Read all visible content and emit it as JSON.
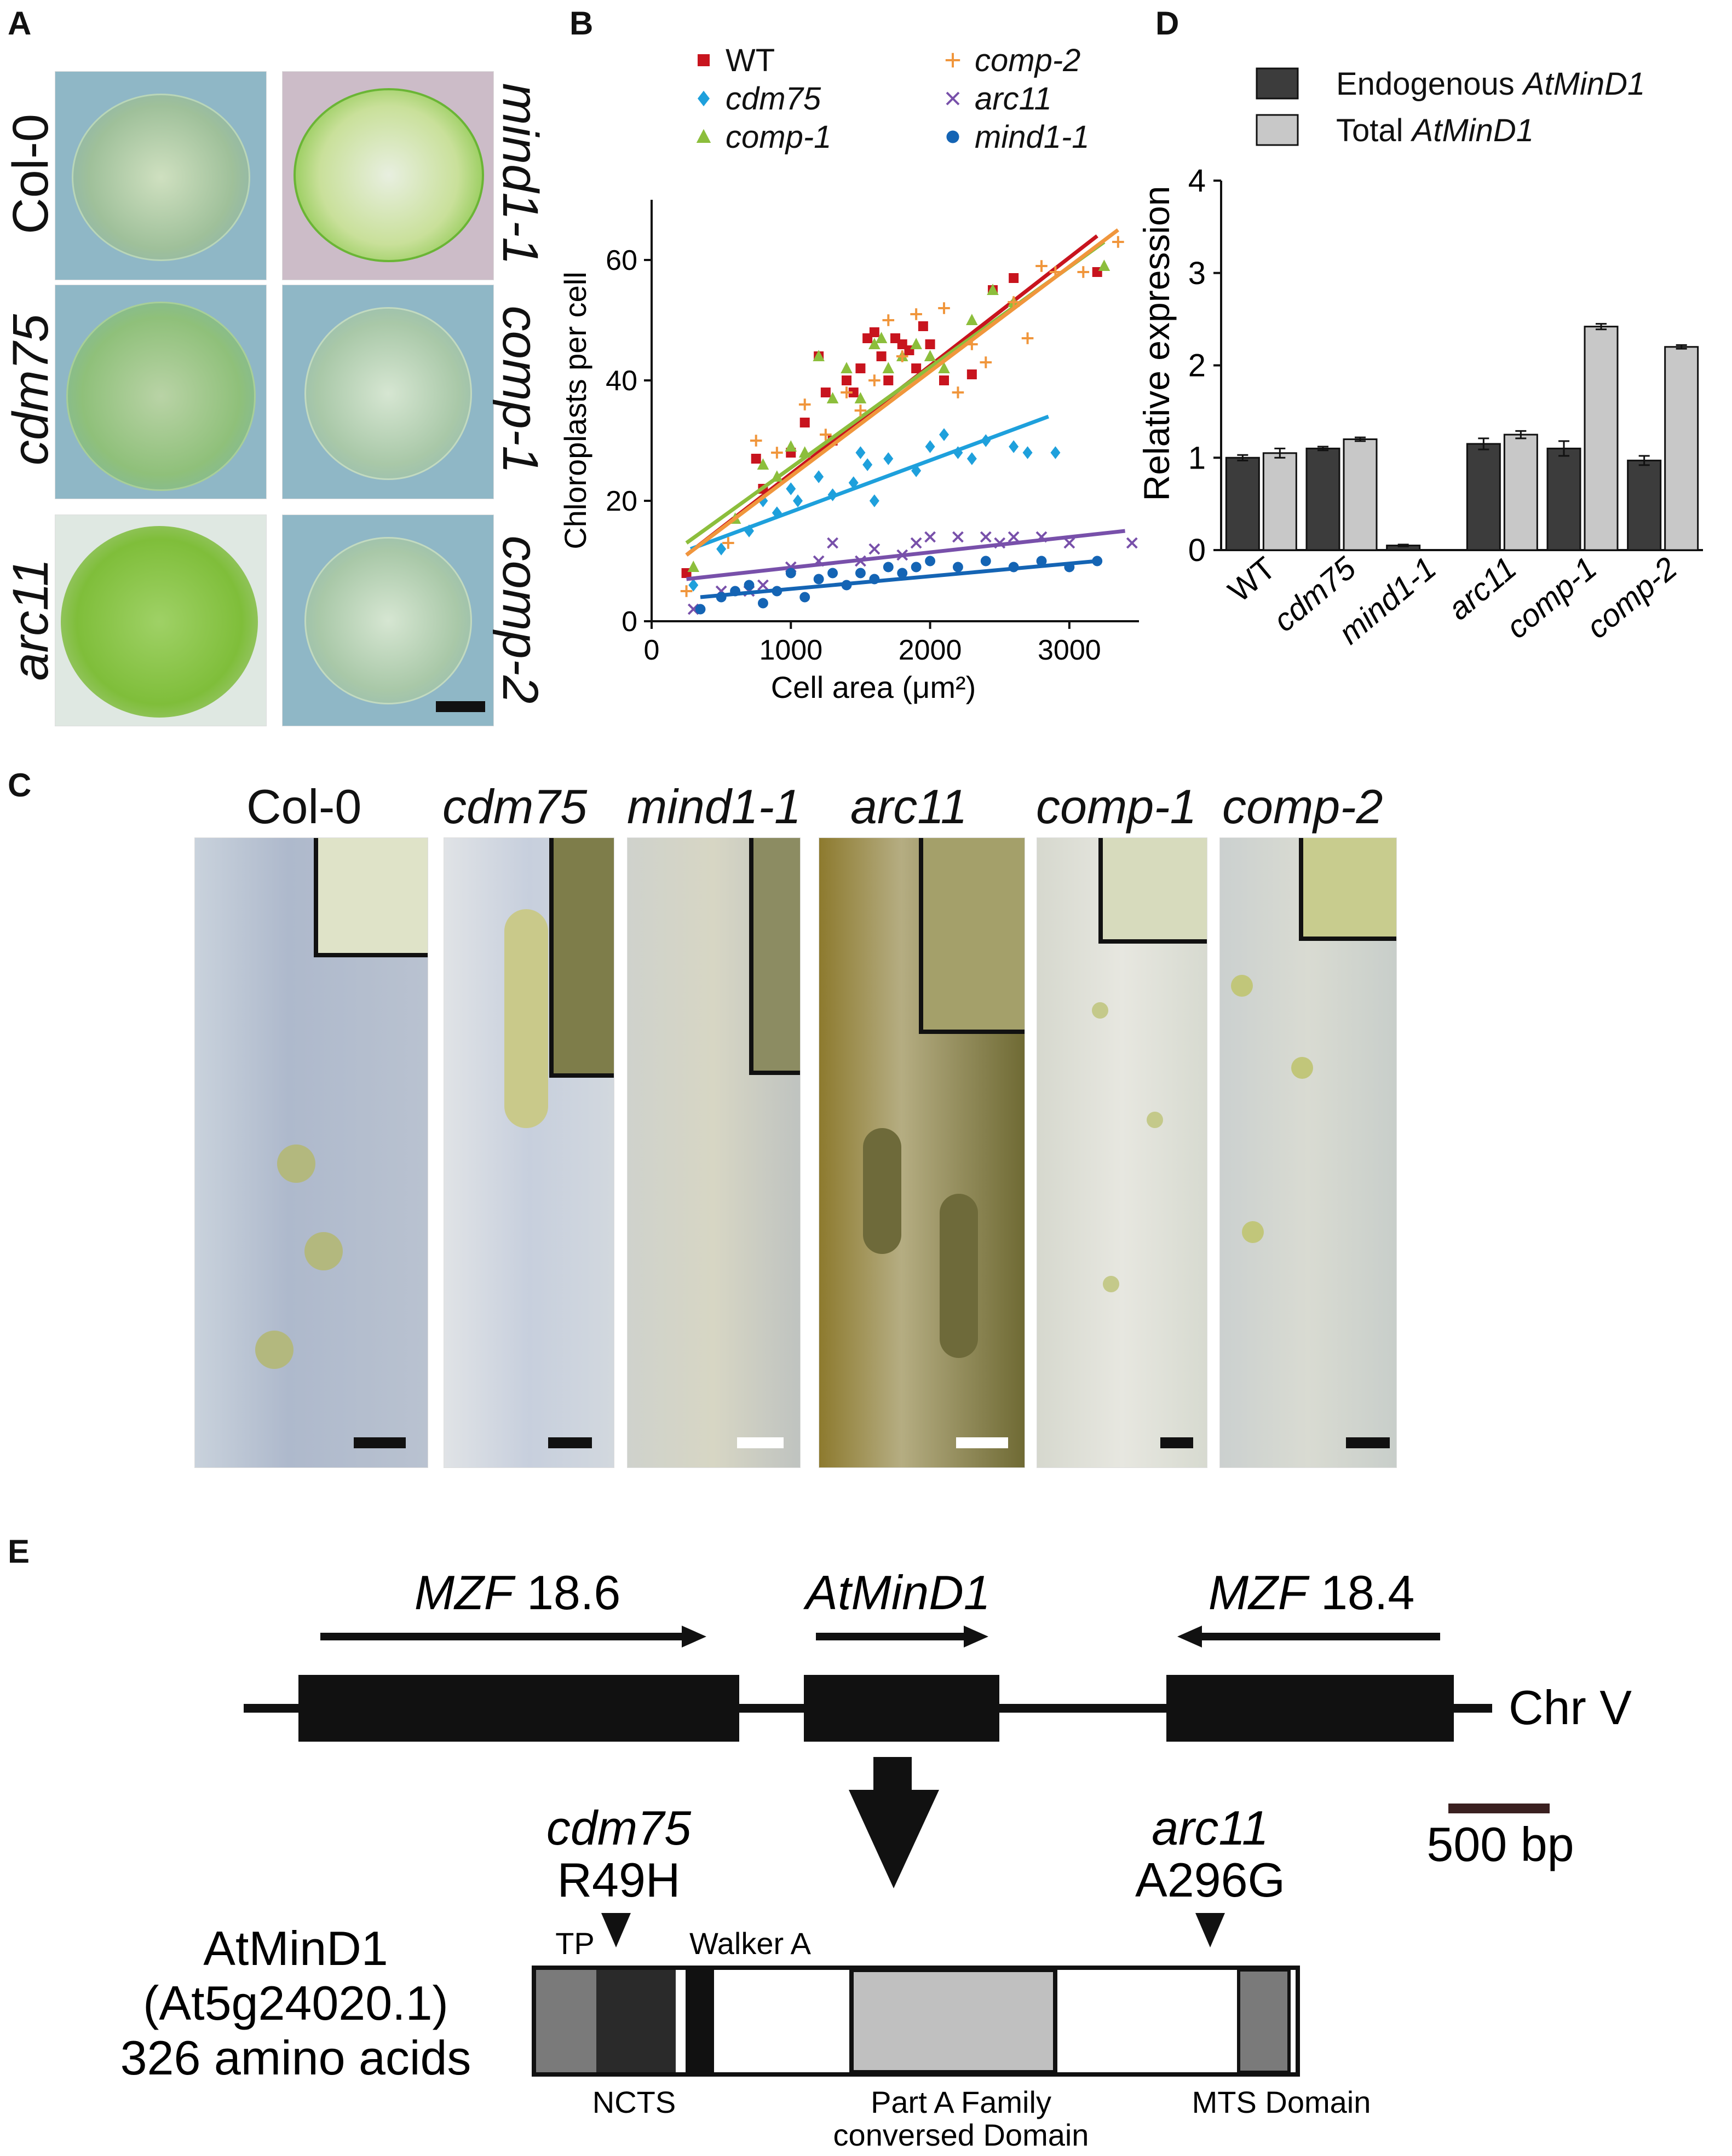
{
  "panels": {
    "a": "A",
    "b": "B",
    "c": "C",
    "d": "D",
    "e": "E"
  },
  "panel_a": {
    "labels": [
      "Col-0",
      "mind1-1",
      "cdm75",
      "comp-1",
      "arc11",
      "comp-2"
    ]
  },
  "panel_c": {
    "labels": [
      "Col-0",
      "cdm75",
      "mind1-1",
      "arc11",
      "comp-1",
      "comp-2"
    ]
  },
  "panel_e": {
    "genes": [
      {
        "name_italic": "MZF",
        "name_rest": " 18.6",
        "direction": "right"
      },
      {
        "name_italic": "AtMinD1",
        "name_rest": "",
        "direction": "right"
      },
      {
        "name_italic": "MZF",
        "name_rest": " 18.4",
        "direction": "left"
      }
    ],
    "chromosome": "Chr V",
    "scale_bar": "500 bp",
    "protein": {
      "name": "AtMinD1",
      "locus": "(At5g24020.1)",
      "length": "326 amino acids"
    },
    "mutations": [
      {
        "allele": "cdm75",
        "change": "R49H"
      },
      {
        "allele": "arc11",
        "change": "A296G"
      }
    ],
    "domains": {
      "tp": "TP",
      "walker": "Walker A",
      "ncts": "NCTS",
      "part_a_1": "Part A Family",
      "part_a_2": "conversed Domain",
      "mts": "MTS Domain"
    }
  },
  "chart_data": [
    {
      "type": "scatter",
      "panel": "B",
      "xlabel": "Cell area (μm²)",
      "ylabel": "Chloroplasts per cell",
      "xlim": [
        0,
        3500
      ],
      "ylim": [
        0,
        70
      ],
      "xticks": [
        0,
        1000,
        2000,
        3000
      ],
      "yticks": [
        0,
        20,
        40,
        60
      ],
      "legend_position": "top",
      "series": [
        {
          "name": "WT",
          "color": "#c8141e",
          "marker": "square",
          "points": [
            [
              250,
              8
            ],
            [
              750,
              27
            ],
            [
              800,
              22
            ],
            [
              1000,
              28
            ],
            [
              1100,
              33
            ],
            [
              1200,
              44
            ],
            [
              1250,
              38
            ],
            [
              1300,
              30
            ],
            [
              1400,
              40
            ],
            [
              1450,
              38
            ],
            [
              1500,
              42
            ],
            [
              1550,
              47
            ],
            [
              1600,
              48
            ],
            [
              1650,
              44
            ],
            [
              1700,
              40
            ],
            [
              1750,
              47
            ],
            [
              1800,
              46
            ],
            [
              1850,
              45
            ],
            [
              1900,
              42
            ],
            [
              1950,
              49
            ],
            [
              2000,
              46
            ],
            [
              2100,
              40
            ],
            [
              2300,
              41
            ],
            [
              2450,
              55
            ],
            [
              2600,
              57
            ],
            [
              3200,
              58
            ]
          ],
          "fit": [
            [
              250,
              11
            ],
            [
              3200,
              64
            ]
          ]
        },
        {
          "name": "cdm75",
          "color": "#1ea0dc",
          "marker": "diamond",
          "points": [
            [
              300,
              6
            ],
            [
              500,
              12
            ],
            [
              700,
              15
            ],
            [
              800,
              20
            ],
            [
              900,
              18
            ],
            [
              1000,
              22
            ],
            [
              1050,
              20
            ],
            [
              1200,
              24
            ],
            [
              1300,
              21
            ],
            [
              1450,
              23
            ],
            [
              1500,
              28
            ],
            [
              1550,
              26
            ],
            [
              1600,
              20
            ],
            [
              1700,
              27
            ],
            [
              1900,
              25
            ],
            [
              2000,
              29
            ],
            [
              2100,
              31
            ],
            [
              2200,
              28
            ],
            [
              2300,
              27
            ],
            [
              2400,
              30
            ],
            [
              2600,
              29
            ],
            [
              2700,
              28
            ],
            [
              2900,
              28
            ]
          ],
          "fit": [
            [
              280,
              12
            ],
            [
              2850,
              34
            ]
          ]
        },
        {
          "name": "comp-1",
          "color": "#8cbe3c",
          "marker": "triangle",
          "points": [
            [
              300,
              9
            ],
            [
              600,
              17
            ],
            [
              800,
              26
            ],
            [
              900,
              24
            ],
            [
              1000,
              29
            ],
            [
              1100,
              28
            ],
            [
              1200,
              44
            ],
            [
              1300,
              37
            ],
            [
              1400,
              42
            ],
            [
              1500,
              37
            ],
            [
              1600,
              46
            ],
            [
              1650,
              47
            ],
            [
              1700,
              42
            ],
            [
              1800,
              44
            ],
            [
              1900,
              46
            ],
            [
              2000,
              44
            ],
            [
              2100,
              42
            ],
            [
              2300,
              50
            ],
            [
              2450,
              55
            ],
            [
              2600,
              53
            ],
            [
              3250,
              59
            ]
          ],
          "fit": [
            [
              250,
              13
            ],
            [
              3250,
              63
            ]
          ]
        },
        {
          "name": "comp-2",
          "color": "#f0963c",
          "marker": "plus",
          "points": [
            [
              250,
              5
            ],
            [
              550,
              13
            ],
            [
              750,
              30
            ],
            [
              900,
              28
            ],
            [
              1100,
              36
            ],
            [
              1250,
              31
            ],
            [
              1400,
              38
            ],
            [
              1500,
              35
            ],
            [
              1600,
              40
            ],
            [
              1700,
              50
            ],
            [
              1800,
              44
            ],
            [
              1900,
              51
            ],
            [
              2100,
              52
            ],
            [
              2200,
              38
            ],
            [
              2300,
              46
            ],
            [
              2400,
              43
            ],
            [
              2600,
              53
            ],
            [
              2700,
              47
            ],
            [
              2800,
              59
            ],
            [
              2900,
              58
            ],
            [
              3100,
              58
            ],
            [
              3350,
              63
            ]
          ],
          "fit": [
            [
              250,
              11
            ],
            [
              3350,
              65
            ]
          ]
        },
        {
          "name": "arc11",
          "color": "#7850aa",
          "marker": "x",
          "points": [
            [
              300,
              2
            ],
            [
              500,
              5
            ],
            [
              700,
              5
            ],
            [
              800,
              6
            ],
            [
              1000,
              9
            ],
            [
              1200,
              10
            ],
            [
              1300,
              13
            ],
            [
              1500,
              10
            ],
            [
              1600,
              12
            ],
            [
              1800,
              11
            ],
            [
              1900,
              13
            ],
            [
              2000,
              14
            ],
            [
              2200,
              14
            ],
            [
              2400,
              14
            ],
            [
              2500,
              13
            ],
            [
              2600,
              14
            ],
            [
              2800,
              14
            ],
            [
              3000,
              13
            ],
            [
              3450,
              13
            ]
          ],
          "fit": [
            [
              250,
              7
            ],
            [
              3400,
              15
            ]
          ]
        },
        {
          "name": "mind1-1",
          "color": "#1464b4",
          "marker": "circle",
          "points": [
            [
              350,
              2
            ],
            [
              500,
              4
            ],
            [
              600,
              5
            ],
            [
              700,
              6
            ],
            [
              800,
              3
            ],
            [
              900,
              5
            ],
            [
              1000,
              8
            ],
            [
              1100,
              4
            ],
            [
              1200,
              7
            ],
            [
              1300,
              8
            ],
            [
              1400,
              6
            ],
            [
              1500,
              8
            ],
            [
              1600,
              7
            ],
            [
              1700,
              9
            ],
            [
              1800,
              8
            ],
            [
              1900,
              9
            ],
            [
              2000,
              10
            ],
            [
              2200,
              9
            ],
            [
              2400,
              10
            ],
            [
              2600,
              9
            ],
            [
              2800,
              10
            ],
            [
              3000,
              9
            ],
            [
              3200,
              10
            ]
          ],
          "fit": [
            [
              350,
              4
            ],
            [
              3200,
              10
            ]
          ]
        }
      ]
    },
    {
      "type": "bar",
      "panel": "D",
      "ylabel": "Relative expression",
      "ylim": [
        0,
        4
      ],
      "yticks": [
        0,
        1,
        2,
        3,
        4
      ],
      "categories": [
        "WT",
        "cdm75",
        "mind1-1",
        "arc11",
        "comp-1",
        "comp-2"
      ],
      "series": [
        {
          "name": "Endogenous AtMinD1",
          "name_plain": "Endogenous ",
          "name_italic": "AtMinD1",
          "color": "#3c3c3c",
          "values": [
            1.0,
            1.1,
            0.05,
            1.15,
            1.1,
            0.97
          ],
          "errors": [
            0.03,
            0.02,
            0.01,
            0.06,
            0.08,
            0.05
          ]
        },
        {
          "name": "Total AtMinD1",
          "name_plain": "Total ",
          "name_italic": "AtMinD1",
          "color": "#c8c8c8",
          "values": [
            1.05,
            1.2,
            0.0,
            1.25,
            2.42,
            2.2
          ],
          "errors": [
            0.05,
            0.02,
            0.0,
            0.04,
            0.03,
            0.02
          ]
        }
      ],
      "legend_position": "top-left"
    }
  ]
}
